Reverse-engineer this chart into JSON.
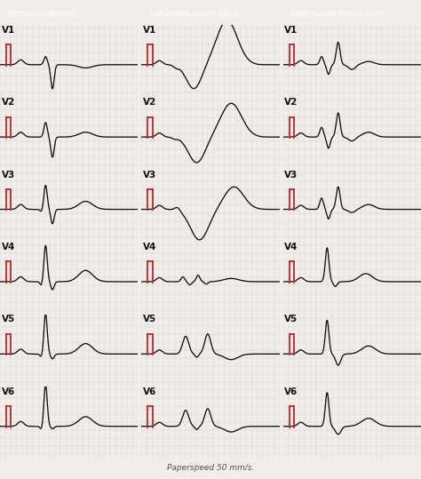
{
  "title_normal": "Normal conduction",
  "title_lbbb": "Left bundle branch block",
  "title_rbbb": "Right bundle branch block",
  "title_color": "#ffffff",
  "title_bg_normal": "#3aada8",
  "title_bg_lbbb": "#c8b455",
  "title_bg_rbbb": "#7db87a",
  "bg_color": "#f0eeeb",
  "grid_color": "#d8d4cf",
  "ecg_color": "#111111",
  "cal_color": "#cc2222",
  "leads": [
    "V1",
    "V2",
    "V3",
    "V4",
    "V5",
    "V6"
  ],
  "footer": "Paperspeed 50 mm/s."
}
